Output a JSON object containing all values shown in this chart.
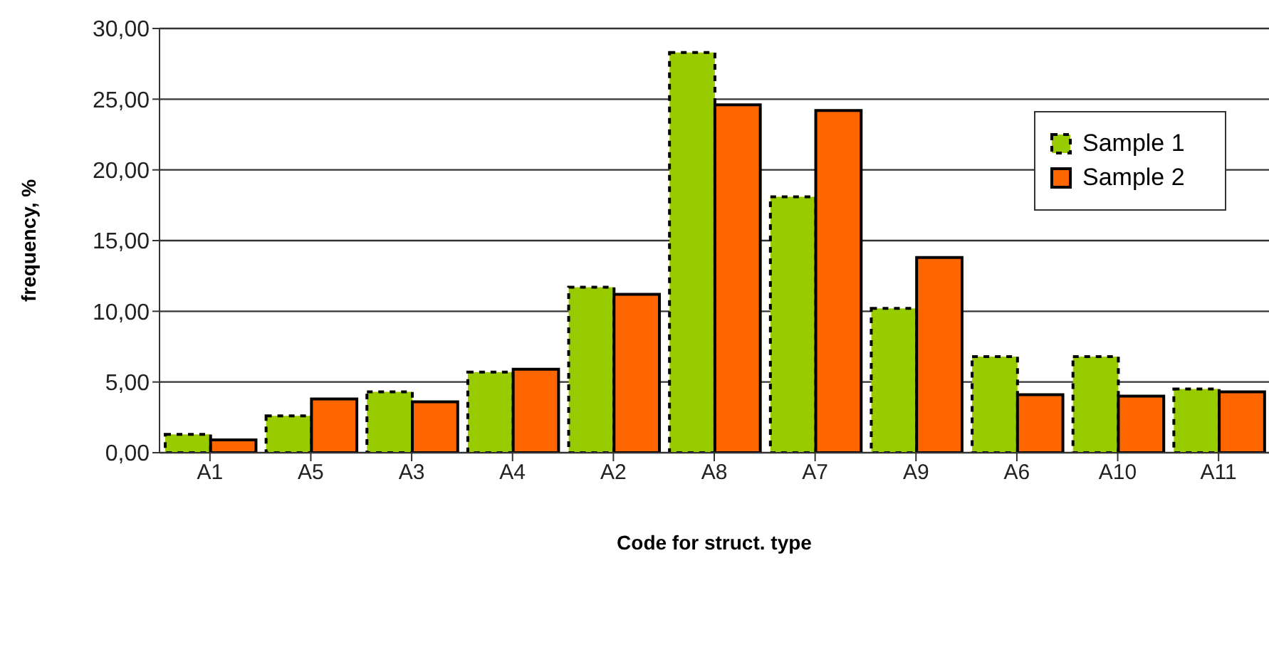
{
  "chart_data": {
    "type": "bar",
    "xlabel": "Code for struct. type",
    "ylabel": "frequency, %",
    "categories": [
      "A1",
      "A5",
      "A3",
      "A4",
      "A2",
      "A8",
      "A7",
      "A9",
      "A6",
      "A10",
      "A11"
    ],
    "series": [
      {
        "name": "Sample 1",
        "color": "#99cc00",
        "line_style": "dashed",
        "values": [
          1.3,
          2.6,
          4.3,
          5.7,
          11.7,
          28.3,
          18.1,
          10.2,
          6.8,
          6.8,
          4.5
        ]
      },
      {
        "name": "Sample 2",
        "color": "#ff6600",
        "line_style": "solid",
        "values": [
          0.9,
          3.8,
          3.6,
          5.9,
          11.2,
          24.6,
          24.2,
          13.8,
          4.1,
          4.0,
          4.3
        ]
      }
    ],
    "ylim": [
      0,
      30
    ],
    "yticks": [
      {
        "value": 0,
        "label": "0,00"
      },
      {
        "value": 5,
        "label": "5,00"
      },
      {
        "value": 10,
        "label": "10,00"
      },
      {
        "value": 15,
        "label": "15,00"
      },
      {
        "value": 20,
        "label": "20,00"
      },
      {
        "value": 25,
        "label": "25,00"
      },
      {
        "value": 30,
        "label": "30,00"
      }
    ],
    "grid": "y",
    "legend": "top right"
  }
}
